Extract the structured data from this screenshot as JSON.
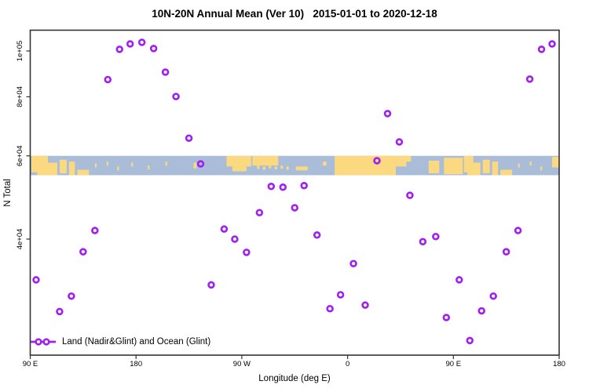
{
  "chart_data": {
    "type": "scatter",
    "title": "10N-20N Annual Mean (Ver 10)   2015-01-01 to 2020-12-18",
    "xlabel": "Longitude (deg E)",
    "ylabel": "N Total",
    "x_axis": {
      "min": 90,
      "max": 540,
      "wraps_longitude": true,
      "ticks": [
        {
          "value": 90,
          "label": "90 E"
        },
        {
          "value": 180,
          "label": "180"
        },
        {
          "value": 270,
          "label": "90 W"
        },
        {
          "value": 360,
          "label": "0"
        },
        {
          "value": 450,
          "label": "90 E"
        },
        {
          "value": 540,
          "label": "180"
        }
      ]
    },
    "y_axis": {
      "scale": "log",
      "min": 22700,
      "max": 110000,
      "ticks": [
        {
          "value": 100000,
          "label": "1e+05"
        },
        {
          "value": 80000,
          "label": "8e+04"
        },
        {
          "value": 60000,
          "label": "6e+04"
        },
        {
          "value": 40000,
          "label": "4e+04"
        }
      ]
    },
    "legend": {
      "label": "Land (Nadir&Glint) and Ocean (Glint)",
      "position": "bottom-left",
      "marker": "open-circles-on-line"
    },
    "series": [
      {
        "name": "Land (Nadir&Glint) and Ocean (Glint)",
        "marker": "open-circle",
        "marker_color": "#A020F0",
        "points": [
          {
            "lon": 95,
            "n": 32800
          },
          {
            "lon": 115,
            "n": 28100
          },
          {
            "lon": 125,
            "n": 30300
          },
          {
            "lon": 135,
            "n": 37600
          },
          {
            "lon": 145,
            "n": 41700
          },
          {
            "lon": 156,
            "n": 87000
          },
          {
            "lon": 166,
            "n": 100800
          },
          {
            "lon": 175,
            "n": 103500
          },
          {
            "lon": 185,
            "n": 104300
          },
          {
            "lon": 195,
            "n": 101200
          },
          {
            "lon": 205,
            "n": 90200
          },
          {
            "lon": 214,
            "n": 80100
          },
          {
            "lon": 225,
            "n": 65400
          },
          {
            "lon": 235,
            "n": 57700
          },
          {
            "lon": 244,
            "n": 32000
          },
          {
            "lon": 255,
            "n": 42000
          },
          {
            "lon": 264,
            "n": 40000
          },
          {
            "lon": 274,
            "n": 37500
          },
          {
            "lon": 285,
            "n": 45500
          },
          {
            "lon": 295,
            "n": 51700
          },
          {
            "lon": 305,
            "n": 51500
          },
          {
            "lon": 315,
            "n": 46600
          },
          {
            "lon": 323,
            "n": 51900
          },
          {
            "lon": 334,
            "n": 40800
          },
          {
            "lon": 345,
            "n": 28500
          },
          {
            "lon": 354,
            "n": 30500
          },
          {
            "lon": 365,
            "n": 35500
          },
          {
            "lon": 375,
            "n": 29000
          },
          {
            "lon": 385,
            "n": 58600
          },
          {
            "lon": 394,
            "n": 73700
          },
          {
            "lon": 404,
            "n": 64200
          },
          {
            "lon": 413,
            "n": 49500
          },
          {
            "lon": 424,
            "n": 39500
          },
          {
            "lon": 435,
            "n": 40500
          },
          {
            "lon": 444,
            "n": 27300
          },
          {
            "lon": 455,
            "n": 32800
          },
          {
            "lon": 464,
            "n": 24400
          },
          {
            "lon": 474,
            "n": 28200
          },
          {
            "lon": 484,
            "n": 30300
          },
          {
            "lon": 495,
            "n": 37600
          },
          {
            "lon": 505,
            "n": 41700
          },
          {
            "lon": 515,
            "n": 87200
          },
          {
            "lon": 525,
            "n": 100800
          },
          {
            "lon": 534,
            "n": 103500
          }
        ]
      }
    ],
    "map_band": {
      "description": "world coastline strip for latitude band 10N-20N drawn across plot",
      "top_value": 60000,
      "bottom_value": 54600,
      "ocean_color": "#A9BDD9",
      "land_color": "#FBD981",
      "land_patches": [
        {
          "l": 91,
          "r": 105,
          "t": 0.0,
          "b": 0.85
        },
        {
          "l": 96,
          "r": 113,
          "t": 0.35,
          "b": 1.0
        },
        {
          "l": 115,
          "r": 121,
          "t": 0.2,
          "b": 0.9
        },
        {
          "l": 123,
          "r": 128,
          "t": 0.3,
          "b": 1.0
        },
        {
          "l": 130,
          "r": 140,
          "t": 0.72,
          "b": 1.0
        },
        {
          "l": 145,
          "r": 146.5,
          "t": 0.4,
          "b": 0.6
        },
        {
          "l": 155,
          "r": 156.5,
          "t": 0.3,
          "b": 0.5
        },
        {
          "l": 164,
          "r": 165.5,
          "t": 0.55,
          "b": 0.75
        },
        {
          "l": 176,
          "r": 177.5,
          "t": 0.35,
          "b": 0.55
        },
        {
          "l": 190,
          "r": 191.5,
          "t": 0.5,
          "b": 0.7
        },
        {
          "l": 205,
          "r": 206.5,
          "t": 0.3,
          "b": 0.5
        },
        {
          "l": 229,
          "r": 231.5,
          "t": 0.35,
          "b": 0.65
        },
        {
          "l": 257,
          "r": 278,
          "t": 0.0,
          "b": 0.55
        },
        {
          "l": 262,
          "r": 274,
          "t": 0.55,
          "b": 0.8
        },
        {
          "l": 279,
          "r": 301,
          "t": 0.0,
          "b": 0.5
        },
        {
          "l": 283,
          "r": 285,
          "t": 0.5,
          "b": 0.68
        },
        {
          "l": 288,
          "r": 290,
          "t": 0.55,
          "b": 0.72
        },
        {
          "l": 293,
          "r": 295,
          "t": 0.5,
          "b": 0.65
        },
        {
          "l": 298,
          "r": 300,
          "t": 0.55,
          "b": 0.7
        },
        {
          "l": 303,
          "r": 305,
          "t": 0.5,
          "b": 0.66
        },
        {
          "l": 308,
          "r": 310,
          "t": 0.55,
          "b": 0.72
        },
        {
          "l": 316,
          "r": 326,
          "t": 0.55,
          "b": 0.75
        },
        {
          "l": 339,
          "r": 342,
          "t": 0.3,
          "b": 0.5
        },
        {
          "l": 349,
          "r": 401,
          "t": 0.0,
          "b": 1.0
        },
        {
          "l": 401,
          "r": 410,
          "t": 0.0,
          "b": 0.55
        },
        {
          "l": 404,
          "r": 414,
          "t": 0.0,
          "b": 0.3
        },
        {
          "l": 429,
          "r": 438,
          "t": 0.25,
          "b": 0.9
        },
        {
          "l": 442,
          "r": 458,
          "t": 0.1,
          "b": 0.95
        },
        {
          "l": 459,
          "r": 467,
          "t": 0.0,
          "b": 0.85
        },
        {
          "l": 462,
          "r": 473,
          "t": 0.35,
          "b": 1.0
        },
        {
          "l": 475,
          "r": 481,
          "t": 0.2,
          "b": 0.9
        },
        {
          "l": 483,
          "r": 488,
          "t": 0.3,
          "b": 1.0
        },
        {
          "l": 490,
          "r": 500,
          "t": 0.72,
          "b": 1.0
        },
        {
          "l": 505,
          "r": 506.5,
          "t": 0.4,
          "b": 0.6
        },
        {
          "l": 515,
          "r": 516.5,
          "t": 0.3,
          "b": 0.5
        },
        {
          "l": 524,
          "r": 525.5,
          "t": 0.55,
          "b": 0.75
        },
        {
          "l": 534,
          "r": 540,
          "t": 0.05,
          "b": 0.6
        }
      ]
    }
  },
  "colors": {
    "background": "#FFFFFF",
    "axis": "#333333",
    "text": "#000000",
    "point": "#A020F0"
  }
}
